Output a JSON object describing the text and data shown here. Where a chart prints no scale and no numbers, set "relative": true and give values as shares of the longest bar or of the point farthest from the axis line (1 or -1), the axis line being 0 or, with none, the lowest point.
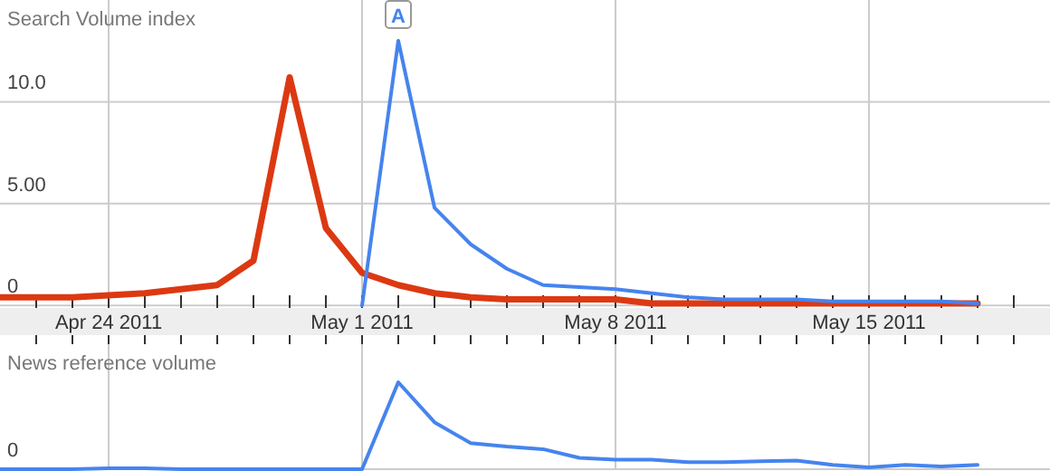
{
  "chart_data": [
    {
      "type": "line",
      "ylabel": "Search Volume index",
      "x": [
        "2011-04-21",
        "2011-04-22",
        "2011-04-23",
        "2011-04-24",
        "2011-04-25",
        "2011-04-26",
        "2011-04-27",
        "2011-04-28",
        "2011-04-29",
        "2011-04-30",
        "2011-05-01",
        "2011-05-02",
        "2011-05-03",
        "2011-05-04",
        "2011-05-05",
        "2011-05-06",
        "2011-05-07",
        "2011-05-08",
        "2011-05-09",
        "2011-05-10",
        "2011-05-11",
        "2011-05-12",
        "2011-05-13",
        "2011-05-14",
        "2011-05-15",
        "2011-05-16",
        "2011-05-17",
        "2011-05-18"
      ],
      "series": [
        {
          "color": "#dc3912",
          "values": [
            0.4,
            0.4,
            0.4,
            0.5,
            0.6,
            0.8,
            1.0,
            2.2,
            11.2,
            3.8,
            1.6,
            1.0,
            0.6,
            0.4,
            0.3,
            0.3,
            0.3,
            0.3,
            0.1,
            0.1,
            0.1,
            0.1,
            0.1,
            0.1,
            0.1,
            0.1,
            0.1,
            0.1
          ]
        },
        {
          "color": "#4684ee",
          "values": [
            null,
            null,
            null,
            null,
            null,
            null,
            null,
            null,
            null,
            null,
            0,
            13.0,
            4.8,
            3.0,
            1.8,
            1.0,
            0.9,
            0.8,
            0.6,
            0.4,
            0.3,
            0.3,
            0.3,
            0.2,
            0.2,
            0.2,
            0.2,
            0.1
          ]
        }
      ],
      "xlim": [
        "2011-04-21",
        "2011-05-20"
      ],
      "xticks": [
        {
          "value": "2011-04-22",
          "label": null
        },
        {
          "value": "2011-04-23",
          "label": null
        },
        {
          "value": "2011-04-24",
          "label": "Apr 24 2011"
        },
        {
          "value": "2011-04-25",
          "label": null
        },
        {
          "value": "2011-04-26",
          "label": null
        },
        {
          "value": "2011-04-27",
          "label": null
        },
        {
          "value": "2011-04-28",
          "label": null
        },
        {
          "value": "2011-04-29",
          "label": null
        },
        {
          "value": "2011-04-30",
          "label": null
        },
        {
          "value": "2011-05-01",
          "label": "May 1 2011"
        },
        {
          "value": "2011-05-02",
          "label": null
        },
        {
          "value": "2011-05-03",
          "label": null
        },
        {
          "value": "2011-05-04",
          "label": null
        },
        {
          "value": "2011-05-05",
          "label": null
        },
        {
          "value": "2011-05-06",
          "label": null
        },
        {
          "value": "2011-05-07",
          "label": null
        },
        {
          "value": "2011-05-08",
          "label": "May 8 2011"
        },
        {
          "value": "2011-05-09",
          "label": null
        },
        {
          "value": "2011-05-10",
          "label": null
        },
        {
          "value": "2011-05-11",
          "label": null
        },
        {
          "value": "2011-05-12",
          "label": null
        },
        {
          "value": "2011-05-13",
          "label": null
        },
        {
          "value": "2011-05-14",
          "label": null
        },
        {
          "value": "2011-05-15",
          "label": "May 15 2011"
        },
        {
          "value": "2011-05-16",
          "label": null
        },
        {
          "value": "2011-05-17",
          "label": null
        },
        {
          "value": "2011-05-18",
          "label": null
        },
        {
          "value": "2011-05-19",
          "label": null
        }
      ],
      "ylim": [
        0,
        15
      ],
      "yticks": [
        {
          "value": 0,
          "label": "0"
        },
        {
          "value": 5,
          "label": "5.00"
        },
        {
          "value": 10,
          "label": "10.0"
        }
      ],
      "grid": true,
      "annotations": [
        {
          "text": "A",
          "x": "2011-05-02",
          "y": 13.0
        }
      ]
    },
    {
      "type": "line",
      "ylabel": "News reference volume",
      "relative": true,
      "annotations": [
        "0"
      ],
      "x": [
        "2011-04-21",
        "2011-04-22",
        "2011-04-23",
        "2011-04-24",
        "2011-04-25",
        "2011-04-26",
        "2011-04-27",
        "2011-04-28",
        "2011-04-29",
        "2011-04-30",
        "2011-05-01",
        "2011-05-02",
        "2011-05-03",
        "2011-05-04",
        "2011-05-05",
        "2011-05-06",
        "2011-05-07",
        "2011-05-08",
        "2011-05-09",
        "2011-05-10",
        "2011-05-11",
        "2011-05-12",
        "2011-05-13",
        "2011-05-14",
        "2011-05-15",
        "2011-05-16",
        "2011-05-17",
        "2011-05-18"
      ],
      "series": [
        {
          "color": "#4684ee",
          "values": [
            0,
            0,
            0,
            0.01,
            0.01,
            0,
            0,
            0,
            0,
            0,
            0,
            1,
            0.54,
            0.3,
            0.26,
            0.23,
            0.13,
            0.11,
            0.11,
            0.08,
            0.08,
            0.09,
            0.1,
            0.05,
            0.02,
            0.05,
            0.03,
            0.05
          ]
        }
      ],
      "xlim": [
        "2011-04-21",
        "2011-05-20"
      ],
      "grid": true
    }
  ]
}
